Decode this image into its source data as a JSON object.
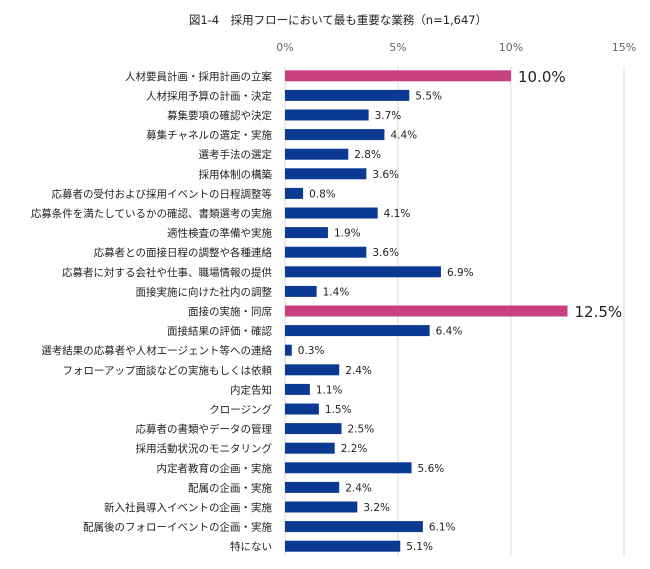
{
  "chart_data": {
    "type": "bar",
    "orientation": "horizontal",
    "title": "図1-4　採用フローにおいて最も重要な業務（n=1,647）",
    "xlabel": "",
    "ylabel": "",
    "xlim": [
      0,
      15
    ],
    "xticks": [
      0,
      5,
      10,
      15
    ],
    "xtick_labels": [
      "0%",
      "5%",
      "10%",
      "15%"
    ],
    "grid": "vertical",
    "colors": {
      "default": "#0a3a93",
      "highlight": "#c8407f"
    },
    "categories": [
      "人材要員計画・採用計画の立案",
      "人材採用予算の計画・決定",
      "募集要項の確認や決定",
      "募集チャネルの選定・実施",
      "選考手法の選定",
      "採用体制の構築",
      "応募者の受付および採用イベントの日程調整等",
      "応募条件を満たしているかの確認、書類選考の実施",
      "適性検査の準備や実施",
      "応募者との面接日程の調整や各種連絡",
      "応募者に対する会社や仕事、職場情報の提供",
      "面接実施に向けた社内の調整",
      "面接の実施・同席",
      "面接結果の評価・確認",
      "選考結果の応募者や人材エージェント等への連絡",
      "フォローアップ面談などの実施もしくは依頼",
      "内定告知",
      "クロージング",
      "応募者の書類やデータの管理",
      "採用活動状況のモニタリング",
      "内定者教育の企画・実施",
      "配属の企画・実施",
      "新入社員導入イベントの企画・実施",
      "配属後のフォローイベントの企画・実施",
      "特にない"
    ],
    "values": [
      10.0,
      5.5,
      3.7,
      4.4,
      2.8,
      3.6,
      0.8,
      4.1,
      1.9,
      3.6,
      6.9,
      1.4,
      12.5,
      6.4,
      0.3,
      2.4,
      1.1,
      1.5,
      2.5,
      2.2,
      5.6,
      2.4,
      3.2,
      6.1,
      5.1
    ],
    "value_labels": [
      "10.0%",
      "5.5%",
      "3.7%",
      "4.4%",
      "2.8%",
      "3.6%",
      "0.8%",
      "4.1%",
      "1.9%",
      "3.6%",
      "6.9%",
      "1.4%",
      "12.5%",
      "6.4%",
      "0.3%",
      "2.4%",
      "1.1%",
      "1.5%",
      "2.5%",
      "2.2%",
      "5.6%",
      "2.4%",
      "3.2%",
      "6.1%",
      "5.1%"
    ],
    "highlighted": [
      0,
      12
    ]
  }
}
